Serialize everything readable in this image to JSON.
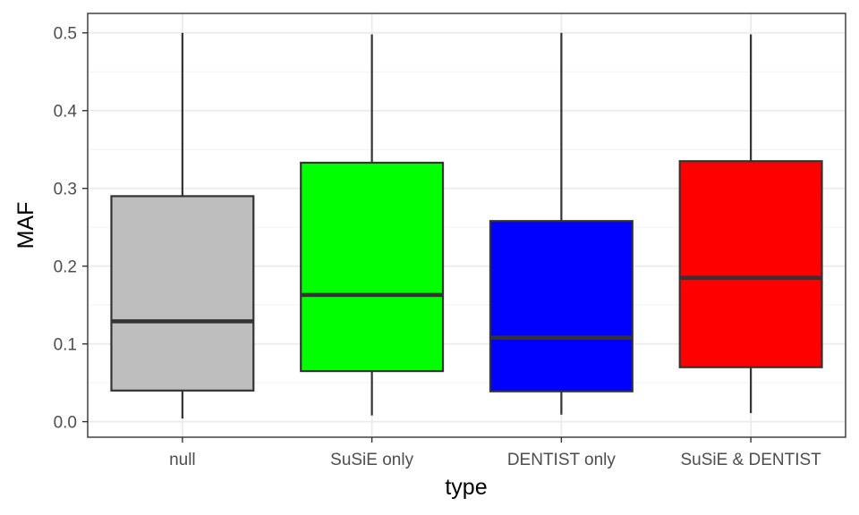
{
  "chart_data": {
    "type": "boxplot",
    "xlabel": "type",
    "ylabel": "MAF",
    "ylim": [
      -0.02,
      0.525
    ],
    "y_ticks": [
      0.0,
      0.1,
      0.2,
      0.3,
      0.4,
      0.5
    ],
    "y_tick_labels": [
      "0.0",
      "0.1",
      "0.2",
      "0.3",
      "0.4",
      "0.5"
    ],
    "categories": [
      "null",
      "SuSiE only",
      "DENTIST only",
      "SuSiE & DENTIST"
    ],
    "boxes": [
      {
        "category": "null",
        "min": 0.004,
        "q1": 0.04,
        "median": 0.129,
        "q3": 0.29,
        "max": 0.5,
        "color": "#BEBEBE"
      },
      {
        "category": "SuSiE only",
        "min": 0.008,
        "q1": 0.065,
        "median": 0.163,
        "q3": 0.333,
        "max": 0.498,
        "color": "#00FF00"
      },
      {
        "category": "DENTIST only",
        "min": 0.009,
        "q1": 0.039,
        "median": 0.108,
        "q3": 0.258,
        "max": 0.5,
        "color": "#0000FF"
      },
      {
        "category": "SuSiE & DENTIST",
        "min": 0.011,
        "q1": 0.07,
        "median": 0.185,
        "q3": 0.335,
        "max": 0.498,
        "color": "#FF0000"
      }
    ],
    "grid": true,
    "legend": "none"
  }
}
